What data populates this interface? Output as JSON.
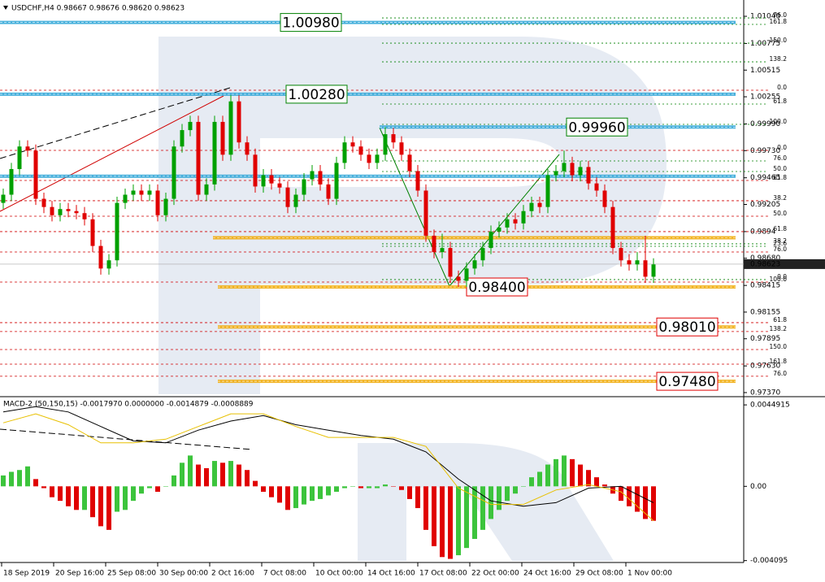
{
  "chart_data": [
    {
      "type": "candlestick",
      "title": "USDCHF,H4  0.98667 0.98676 0.98620 0.98623",
      "up_color": "#00a000",
      "down_color": "#e00000",
      "xlim": [
        -0.4,
        91.1
      ],
      "ylim": [
        0.97338,
        1.01183
      ],
      "yticks": [
        {
          "value": 1.0104,
          "label": "1.01040"
        },
        {
          "value": 1.00775,
          "label": "1.00775"
        },
        {
          "value": 1.00515,
          "label": "1.00515"
        },
        {
          "value": 1.00255,
          "label": "1.00255"
        },
        {
          "value": 0.9999,
          "label": "0.99990"
        },
        {
          "value": 0.9973,
          "label": "0.99730"
        },
        {
          "value": 0.99465,
          "label": "0.99465"
        },
        {
          "value": 0.99205,
          "label": "0.99205"
        },
        0.9894,
        {
          "value": 0.9868,
          "label": "0.98680"
        },
        0.98415,
        0.98155,
        0.97895,
        {
          "value": 0.9763,
          "label": "0.97630"
        },
        {
          "value": 0.9737,
          "label": "0.97370"
        }
      ],
      "last_price": {
        "value": 0.98623,
        "label": "0.98623"
      },
      "levels": [
        {
          "value": 1.0098,
          "label": "1.00980",
          "color": "#29a3d6",
          "label_color": "#008000"
        },
        {
          "value": 1.0028,
          "label": "1.00280",
          "color": "#29a3d6",
          "label_color": "#008000"
        },
        {
          "value": 0.9996,
          "label": "0.99960",
          "color": "#29a3d6",
          "label_color": "#008000"
        },
        {
          "value": 0.9948,
          "color": "#29a3d6"
        },
        {
          "value": 0.9888,
          "color": "#f0a800"
        },
        {
          "value": 0.984,
          "label": "0.98400",
          "color": "#f0a800",
          "label_color": "#e00000"
        },
        {
          "value": 0.9801,
          "label": "0.98010",
          "color": "#f0a800",
          "label_color": "#e00000"
        },
        {
          "value": 0.9748,
          "label": "0.97480",
          "color": "#f0a800",
          "label_color": "#e00000"
        }
      ],
      "fib_levels": [
        {
          "value": 1.01024,
          "label": "76.0",
          "color": "#008000"
        },
        {
          "value": 1.00961,
          "label": "161.8",
          "color": "#008000"
        },
        {
          "value": 1.00778,
          "label": "150.0",
          "color": "#008000"
        },
        {
          "value": 1.00596,
          "label": "138.2",
          "color": "#008000"
        },
        {
          "value": 1.00319,
          "label": "0.0",
          "color": "#d00000"
        },
        {
          "value": 1.00184,
          "label": "61.8",
          "color": "#008000"
        },
        {
          "value": 0.99986,
          "label": "100.0",
          "color": "#008000"
        },
        {
          "value": 0.99732,
          "label": "0.0",
          "color": "#d00000"
        },
        {
          "value": 0.99629,
          "label": "76.0",
          "color": "#008000"
        },
        {
          "value": 0.99526,
          "label": "50.0",
          "color": "#008000"
        },
        {
          "value": 0.99439,
          "label": "61.8",
          "color": "#d00000"
        },
        {
          "value": 0.99241,
          "label": "38.2",
          "color": "#d00000"
        },
        {
          "value": 0.9909,
          "label": "50.0",
          "color": "#d00000"
        },
        {
          "value": 0.9894,
          "label": "61.8",
          "color": "#d00000"
        },
        {
          "value": 0.98821,
          "label": "38.2",
          "color": "#008000"
        },
        {
          "value": 0.98797,
          "label": "23.6",
          "color": "#008000"
        },
        {
          "value": 0.98741,
          "label": "76.0",
          "color": "#d00000"
        },
        {
          "value": 0.98472,
          "label": "0.0",
          "color": "#008000"
        },
        {
          "value": 0.98448,
          "label": "100.0",
          "color": "#d00000"
        },
        {
          "value": 0.98052,
          "label": "61.8",
          "color": "#d00000"
        },
        {
          "value": 0.97965,
          "label": "138.2",
          "color": "#d00000"
        },
        {
          "value": 0.9779,
          "label": "150.0",
          "color": "#d00000"
        },
        {
          "value": 0.97647,
          "label": "161.8",
          "color": "#d00000"
        },
        {
          "value": 0.97529,
          "label": "76.0",
          "color": "#d00000"
        }
      ],
      "ohlc": [
        [
          0.9922,
          0.9936,
          0.9916,
          0.993
        ],
        [
          0.993,
          0.9961,
          0.9924,
          0.9955
        ],
        [
          0.9955,
          0.9983,
          0.9949,
          0.9977
        ],
        [
          0.9977,
          0.9983,
          0.9967,
          0.9973
        ],
        [
          0.9973,
          0.9979,
          0.992,
          0.9926
        ],
        [
          0.9926,
          0.9932,
          0.9912,
          0.9918
        ],
        [
          0.9918,
          0.9924,
          0.9904,
          0.991
        ],
        [
          0.991,
          0.9922,
          0.9904,
          0.9916
        ],
        [
          0.9916,
          0.9922,
          0.9908,
          0.9914
        ],
        [
          0.9914,
          0.992,
          0.9906,
          0.9912
        ],
        [
          0.9912,
          0.9918,
          0.99,
          0.9906
        ],
        [
          0.9906,
          0.9912,
          0.9874,
          0.988
        ],
        [
          0.988,
          0.9886,
          0.9852,
          0.9858
        ],
        [
          0.9858,
          0.9872,
          0.9852,
          0.9866
        ],
        [
          0.9866,
          0.9928,
          0.986,
          0.9922
        ],
        [
          0.9922,
          0.9936,
          0.9916,
          0.993
        ],
        [
          0.993,
          0.994,
          0.9924,
          0.9934
        ],
        [
          0.9934,
          0.994,
          0.9924,
          0.993
        ],
        [
          0.993,
          0.994,
          0.9924,
          0.9934
        ],
        [
          0.9934,
          0.994,
          0.9904,
          0.991
        ],
        [
          0.991,
          0.9932,
          0.9904,
          0.9926
        ],
        [
          0.9926,
          0.9983,
          0.992,
          0.9977
        ],
        [
          0.9977,
          0.9999,
          0.9971,
          0.9993
        ],
        [
          0.9993,
          1.0007,
          0.9987,
          1.0001
        ],
        [
          1.0001,
          1.0007,
          0.9924,
          0.993
        ],
        [
          0.993,
          0.9946,
          0.9924,
          0.994
        ],
        [
          0.994,
          1.0007,
          0.9934,
          1.0001
        ],
        [
          1.0001,
          1.0007,
          0.9963,
          0.9969
        ],
        [
          0.9969,
          1.0027,
          0.9963,
          1.0021
        ],
        [
          1.0021,
          1.0027,
          0.9975,
          0.9981
        ],
        [
          0.9981,
          0.9987,
          0.9963,
          0.9969
        ],
        [
          0.9969,
          0.9975,
          0.9932,
          0.9938
        ],
        [
          0.9938,
          0.9955,
          0.9932,
          0.9949
        ],
        [
          0.9949,
          0.9955,
          0.9935,
          0.9941
        ],
        [
          0.9941,
          0.9947,
          0.9931,
          0.9937
        ],
        [
          0.9937,
          0.9943,
          0.9912,
          0.9918
        ],
        [
          0.9918,
          0.9936,
          0.9912,
          0.993
        ],
        [
          0.993,
          0.9951,
          0.9924,
          0.9945
        ],
        [
          0.9945,
          0.9959,
          0.9939,
          0.9953
        ],
        [
          0.9953,
          0.9959,
          0.9934,
          0.994
        ],
        [
          0.994,
          0.9946,
          0.992,
          0.9926
        ],
        [
          0.9926,
          0.9967,
          0.992,
          0.9961
        ],
        [
          0.9961,
          0.9987,
          0.9955,
          0.9981
        ],
        [
          0.9981,
          0.9987,
          0.9971,
          0.9977
        ],
        [
          0.9977,
          0.9983,
          0.9963,
          0.9969
        ],
        [
          0.9969,
          0.9975,
          0.9955,
          0.9961
        ],
        [
          0.9961,
          0.9975,
          0.9955,
          0.9969
        ],
        [
          0.9969,
          0.9996,
          0.9963,
          0.9989
        ],
        [
          0.9989,
          0.9995,
          0.9975,
          0.9981
        ],
        [
          0.9981,
          0.9987,
          0.9963,
          0.9969
        ],
        [
          0.9969,
          0.9975,
          0.9947,
          0.9953
        ],
        [
          0.9953,
          0.9959,
          0.9928,
          0.9934
        ],
        [
          0.9934,
          0.994,
          0.9884,
          0.989
        ],
        [
          0.989,
          0.9896,
          0.9868,
          0.9874
        ],
        [
          0.9874,
          0.9892,
          0.9868,
          0.9878
        ],
        [
          0.9878,
          0.9884,
          0.9844,
          0.985
        ],
        [
          0.985,
          0.9856,
          0.984,
          0.9846
        ],
        [
          0.9846,
          0.9864,
          0.984,
          0.9858
        ],
        [
          0.9858,
          0.9872,
          0.9852,
          0.9866
        ],
        [
          0.9866,
          0.9884,
          0.986,
          0.9878
        ],
        [
          0.9878,
          0.99,
          0.9872,
          0.9894
        ],
        [
          0.9894,
          0.9904,
          0.9888,
          0.9898
        ],
        [
          0.9898,
          0.9912,
          0.9892,
          0.9906
        ],
        [
          0.9906,
          0.9912,
          0.9896,
          0.9902
        ],
        [
          0.9902,
          0.992,
          0.9896,
          0.9914
        ],
        [
          0.9914,
          0.9928,
          0.9908,
          0.9922
        ],
        [
          0.9922,
          0.9928,
          0.9912,
          0.9918
        ],
        [
          0.9918,
          0.9955,
          0.9912,
          0.9949
        ],
        [
          0.9949,
          0.9959,
          0.9943,
          0.9953
        ],
        [
          0.9953,
          0.9973,
          0.9947,
          0.9961
        ],
        [
          0.9961,
          0.9967,
          0.9943,
          0.9949
        ],
        [
          0.9949,
          0.9963,
          0.9943,
          0.9957
        ],
        [
          0.9957,
          0.9963,
          0.9935,
          0.9941
        ],
        [
          0.9941,
          0.9947,
          0.9928,
          0.9934
        ],
        [
          0.9934,
          0.994,
          0.9912,
          0.9918
        ],
        [
          0.9918,
          0.9924,
          0.9872,
          0.9878
        ],
        [
          0.9878,
          0.9884,
          0.986,
          0.9866
        ],
        [
          0.9866,
          0.9872,
          0.9856,
          0.9862
        ],
        [
          0.9862,
          0.9874,
          0.9856,
          0.9866
        ],
        [
          0.9866,
          0.989,
          0.9844,
          0.985
        ],
        [
          0.985,
          0.9868,
          0.9844,
          0.9862
        ]
      ]
    },
    {
      "type": "macd",
      "title": "MACD-2 (50,150,15) -0.0017970 0.0000000 -0.0014879 -0.0008889",
      "up_color": "#3cc43c",
      "down_color": "#e00000",
      "xlim": [
        -0.4,
        91.1
      ],
      "ylim": [
        -0.0042,
        0.0049
      ],
      "yticks": [
        0.0044915,
        {
          "value": 0,
          "label": "0.00"
        },
        -0.004095
      ],
      "xticks": [
        {
          "value": 0,
          "label": "18 Sep 2019"
        },
        {
          "value": 6.4,
          "label": "20 Sep 16:00"
        },
        {
          "value": 12.8,
          "label": "25 Sep 08:00"
        },
        {
          "value": 19.2,
          "label": "30 Sep 00:00"
        },
        {
          "value": 25.6,
          "label": "2 Oct 16:00"
        },
        {
          "value": 32,
          "label": "7 Oct 08:00"
        },
        {
          "value": 38.4,
          "label": "10 Oct 00:00"
        },
        {
          "value": 44.8,
          "label": "14 Oct 16:00"
        },
        {
          "value": 51.2,
          "label": "17 Oct 08:00"
        },
        {
          "value": 57.6,
          "label": "22 Oct 00:00"
        },
        {
          "value": 64,
          "label": "24 Oct 16:00"
        },
        {
          "value": 70.4,
          "label": "29 Oct 08:00"
        },
        {
          "value": 76.8,
          "label": "1 Nov 00:00"
        }
      ],
      "histogram": [
        0.0006,
        0.0008,
        0.0009,
        0.0011,
        0.0004,
        -0.0001,
        -0.0006,
        -0.0008,
        -0.0011,
        -0.0013,
        -0.0013,
        -0.0017,
        -0.0022,
        -0.0024,
        -0.0014,
        -0.0013,
        -0.0008,
        -0.0004,
        -0.0001,
        -0.0003,
        0,
        0.0006,
        0.0013,
        0.0017,
        0.0012,
        0.001,
        0.0014,
        0.0013,
        0.0014,
        0.0012,
        0.0009,
        0.0003,
        -0.0003,
        -0.0006,
        -0.0009,
        -0.0013,
        -0.0012,
        -0.001,
        -0.0008,
        -0.0007,
        -0.0005,
        -0.0003,
        -0.0001,
        0,
        -0.0001,
        -0.0001,
        -0.0001,
        0.0001,
        0,
        -0.0002,
        -0.0007,
        -0.0012,
        -0.0024,
        -0.0033,
        -0.0039,
        -0.004,
        -0.0038,
        -0.0034,
        -0.0029,
        -0.0024,
        -0.0018,
        -0.0013,
        -0.0008,
        -0.0004,
        0,
        0.0005,
        0.0008,
        0.0012,
        0.0015,
        0.0017,
        0.0015,
        0.0012,
        0.0009,
        0.0005,
        0.0001,
        -0.0004,
        -0.0008,
        -0.0011,
        -0.0014,
        -0.0018,
        -0.0019
      ],
      "lines": [
        {
          "color": "#000000",
          "x": [
            0,
            4,
            8,
            12,
            16,
            20,
            24,
            28,
            32,
            36,
            40,
            44,
            48,
            52,
            56,
            60,
            64,
            68,
            72,
            76,
            80
          ],
          "values": [
            0.0041,
            0.0044,
            0.0041,
            0.0033,
            0.0025,
            0.0024,
            0.0031,
            0.0036,
            0.0039,
            0.0034,
            0.0031,
            0.0028,
            0.0026,
            0.0019,
            0.0004,
            -0.0008,
            -0.0011,
            -0.0009,
            -0.0001,
            0,
            -0.0009
          ]
        },
        {
          "color": "#e8c000",
          "x": [
            0,
            4,
            8,
            12,
            16,
            20,
            24,
            28,
            32,
            36,
            40,
            44,
            48,
            52,
            56,
            60,
            64,
            68,
            72,
            76,
            80
          ],
          "values": [
            0.0035,
            0.004,
            0.0034,
            0.0024,
            0.0024,
            0.0026,
            0.0033,
            0.004,
            0.004,
            0.0033,
            0.0027,
            0.0027,
            0.0027,
            0.0022,
            -0.0001,
            -0.001,
            -0.001,
            -0.0002,
            0.0001,
            -0.0003,
            -0.0019
          ]
        }
      ]
    }
  ]
}
